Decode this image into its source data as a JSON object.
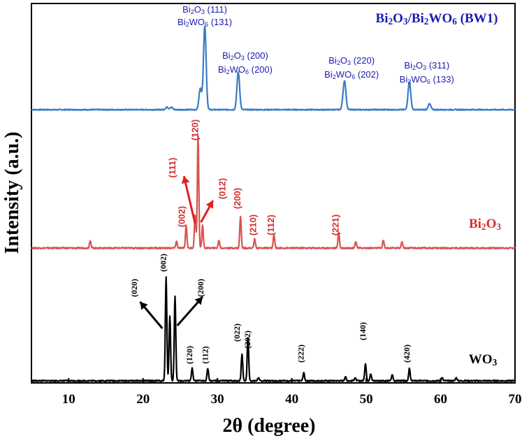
{
  "chart_data": {
    "type": "line",
    "xlabel": "2θ (degree)",
    "ylabel": "Intensity (a.u.)",
    "xlim": [
      5,
      70
    ],
    "x_ticks": [
      10,
      20,
      30,
      40,
      50,
      60,
      70
    ],
    "x_tick_labels": [
      "10",
      "20",
      "30",
      "40",
      "50",
      "60",
      "70"
    ],
    "y_ticks_shown": false,
    "series": [
      {
        "name": "Bi2O3/Bi2WO6 (BW1)",
        "label_parts": [
          [
            "Bi",
            "2",
            "O",
            "3",
            "/Bi",
            "2",
            "WO",
            "6",
            " (BW1)"
          ]
        ],
        "color": "#3a7cc4",
        "baseline": 0.04,
        "peaks": [
          [
            23.2,
            0.03
          ],
          [
            23.8,
            0.03
          ],
          [
            27.7,
            0.25
          ],
          [
            28.3,
            1.0
          ],
          [
            32.8,
            0.45
          ],
          [
            46.9,
            0.05
          ],
          [
            47.1,
            0.32
          ],
          [
            55.8,
            0.33
          ],
          [
            58.5,
            0.07
          ]
        ],
        "annotations": [
          {
            "x": 28.3,
            "lines": [
              [
                "Bi",
                "2",
                "O",
                "3",
                " (111)"
              ],
              [
                "Bi",
                "2",
                "WO",
                "6",
                " (131)"
              ]
            ]
          },
          {
            "x": 32.8,
            "lines": [
              [
                "Bi",
                "2",
                "O",
                "3",
                " (200)"
              ],
              [
                "Bi",
                "2",
                "WO",
                "6",
                " (200)"
              ]
            ]
          },
          {
            "x": 47.1,
            "lines": [
              [
                "Bi",
                "2",
                "O",
                "3",
                " (220)"
              ],
              [
                "Bi",
                "2",
                "WO",
                "6",
                " (202)"
              ]
            ]
          },
          {
            "x": 55.8,
            "lines": [
              [
                "Bi",
                "2",
                "O",
                "3",
                " (311)"
              ],
              [
                "Bi",
                "2",
                "WO",
                "6",
                " (133)"
              ]
            ]
          }
        ]
      },
      {
        "name": "Bi2O3",
        "label_parts": [
          [
            "Bi",
            "2",
            "O",
            "3"
          ]
        ],
        "color": "#d9534f",
        "baseline": 0.04,
        "peaks": [
          [
            12.9,
            0.07
          ],
          [
            24.5,
            0.06
          ],
          [
            25.8,
            0.2
          ],
          [
            27.0,
            0.3
          ],
          [
            27.4,
            1.0
          ],
          [
            28.0,
            0.2
          ],
          [
            30.2,
            0.07
          ],
          [
            33.1,
            0.28
          ],
          [
            35.0,
            0.08
          ],
          [
            37.6,
            0.12
          ],
          [
            46.3,
            0.14
          ],
          [
            48.6,
            0.06
          ],
          [
            52.3,
            0.07
          ],
          [
            54.8,
            0.06
          ]
        ],
        "annotations": [
          {
            "x": 25.9,
            "text": "(002)"
          },
          {
            "x": 27.4,
            "text": "(120)"
          },
          {
            "x": 33.1,
            "text": "(200)"
          },
          {
            "x": 35.2,
            "text": "(210)"
          },
          {
            "x": 37.6,
            "text": "(112)"
          },
          {
            "x": 46.3,
            "text": "(221)"
          },
          {
            "x": 25.5,
            "text": "(111)"
          },
          {
            "x": 29.0,
            "text": "(012)"
          }
        ]
      },
      {
        "name": "WO3",
        "label_parts": [
          [
            "WO",
            "3"
          ]
        ],
        "color": "#000000",
        "baseline": 0.03,
        "peaks": [
          [
            23.1,
            1.0
          ],
          [
            23.6,
            0.63
          ],
          [
            24.3,
            0.82
          ],
          [
            26.6,
            0.12
          ],
          [
            28.7,
            0.12
          ],
          [
            33.3,
            0.26
          ],
          [
            34.1,
            0.42
          ],
          [
            35.5,
            0.03
          ],
          [
            41.6,
            0.08
          ],
          [
            47.2,
            0.04
          ],
          [
            48.5,
            0.03
          ],
          [
            49.9,
            0.17
          ],
          [
            50.6,
            0.07
          ],
          [
            53.5,
            0.06
          ],
          [
            55.8,
            0.12
          ],
          [
            60.2,
            0.03
          ],
          [
            62.1,
            0.03
          ]
        ],
        "annotations": [
          {
            "x": 23.1,
            "text": "(002)"
          },
          {
            "x": 26.6,
            "text": "(120)"
          },
          {
            "x": 28.7,
            "text": "(112)"
          },
          {
            "x": 33.0,
            "text": "(022)"
          },
          {
            "x": 34.4,
            "text": "(202)"
          },
          {
            "x": 41.6,
            "text": "(222)"
          },
          {
            "x": 49.9,
            "text": "(140)"
          },
          {
            "x": 55.8,
            "text": "(420)"
          },
          {
            "x": 19.2,
            "text": "(020)"
          },
          {
            "x": 28.1,
            "text": "(200)"
          }
        ]
      }
    ]
  }
}
